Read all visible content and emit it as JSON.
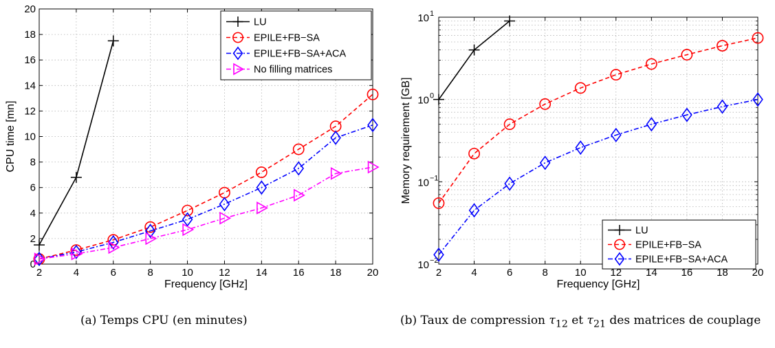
{
  "chart_data": [
    {
      "type": "line",
      "title": "",
      "xlabel": "Frequency [GHz]",
      "ylabel": "CPU time [mn]",
      "xlim": [
        2,
        20
      ],
      "ylim": [
        0,
        20
      ],
      "yscale": "linear",
      "xticks": [
        "2",
        "4",
        "6",
        "8",
        "10",
        "12",
        "14",
        "16",
        "18",
        "20"
      ],
      "yticks": [
        "0",
        "2",
        "4",
        "6",
        "8",
        "10",
        "12",
        "14",
        "16",
        "18",
        "20"
      ],
      "grid": true,
      "legend_position": "top-right",
      "series": [
        {
          "name": "LU",
          "color": "#000000",
          "line": "solid",
          "marker": "plus",
          "x": [
            2,
            4,
            6
          ],
          "y": [
            1.5,
            6.8,
            17.5
          ]
        },
        {
          "name": "EPILE+FB−SA",
          "color": "#ff0000",
          "line": "dashed",
          "marker": "circle",
          "x": [
            2,
            4,
            6,
            8,
            10,
            12,
            14,
            16,
            18,
            20
          ],
          "y": [
            0.4,
            1.1,
            1.9,
            2.9,
            4.2,
            5.6,
            7.2,
            9.0,
            10.8,
            13.3
          ]
        },
        {
          "name": "EPILE+FB−SA+ACA",
          "color": "#0000ff",
          "line": "dashdot",
          "marker": "diamond",
          "x": [
            2,
            4,
            6,
            8,
            10,
            12,
            14,
            16,
            18,
            20
          ],
          "y": [
            0.4,
            0.95,
            1.7,
            2.6,
            3.5,
            4.7,
            6.0,
            7.5,
            9.9,
            10.9
          ]
        },
        {
          "name": "No filling matrices",
          "color": "#ff00ff",
          "line": "dashdot",
          "marker": "triangle-right",
          "x": [
            2,
            4,
            6,
            8,
            10,
            12,
            14,
            16,
            18,
            20
          ],
          "y": [
            0.4,
            0.8,
            1.3,
            2.0,
            2.7,
            3.6,
            4.4,
            5.4,
            7.1,
            7.6
          ]
        }
      ]
    },
    {
      "type": "line",
      "title": "",
      "xlabel": "Frequency [GHz]",
      "ylabel": "Memory requirement [GB]",
      "xlim": [
        2,
        20
      ],
      "ylim": [
        0.01,
        10
      ],
      "yscale": "log",
      "xticks": [
        "2",
        "4",
        "6",
        "8",
        "10",
        "12",
        "14",
        "16",
        "18",
        "20"
      ],
      "yticks": [
        {
          "value": 0.01,
          "base": "10",
          "exp": "−2"
        },
        {
          "value": 0.1,
          "base": "10",
          "exp": "−1"
        },
        {
          "value": 1,
          "base": "10",
          "exp": "0"
        },
        {
          "value": 10,
          "base": "10",
          "exp": "1"
        }
      ],
      "grid": true,
      "legend_position": "bottom-right",
      "series": [
        {
          "name": "LU",
          "color": "#000000",
          "line": "solid",
          "marker": "plus",
          "x": [
            2,
            4,
            6
          ],
          "y": [
            1.0,
            4.0,
            9.0
          ]
        },
        {
          "name": "EPILE+FB−SA",
          "color": "#ff0000",
          "line": "dashed",
          "marker": "circle",
          "x": [
            2,
            4,
            6,
            8,
            10,
            12,
            14,
            16,
            18,
            20
          ],
          "y": [
            0.055,
            0.22,
            0.5,
            0.88,
            1.38,
            2.0,
            2.7,
            3.5,
            4.5,
            5.6
          ]
        },
        {
          "name": "EPILE+FB−SA+ACA",
          "color": "#0000ff",
          "line": "dashdot",
          "marker": "diamond",
          "x": [
            2,
            4,
            6,
            8,
            10,
            12,
            14,
            16,
            18,
            20
          ],
          "y": [
            0.013,
            0.045,
            0.095,
            0.17,
            0.26,
            0.37,
            0.5,
            0.65,
            0.82,
            1.0
          ]
        }
      ]
    }
  ],
  "captions": {
    "a": "(a) Temps CPU (en minutes)",
    "b_prefix": "(b) Taux de compression ",
    "b_tau": "τ",
    "b_sub1": "12",
    "b_mid": " et ",
    "b_sub2": "21",
    "b_suffix": " des matrices de couplage"
  }
}
